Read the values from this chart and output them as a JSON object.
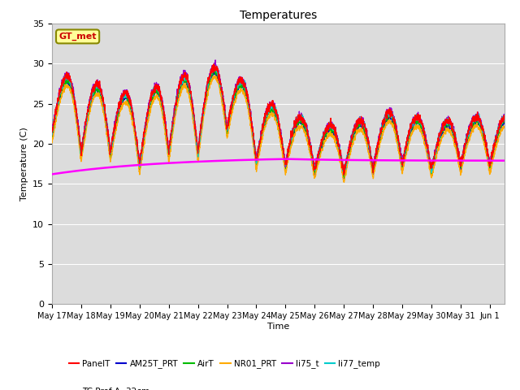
{
  "title": "Temperatures",
  "ylabel": "Temperature (C)",
  "xlabel": "Time",
  "ylim": [
    0,
    35
  ],
  "yticks": [
    0,
    5,
    10,
    15,
    20,
    25,
    30,
    35
  ],
  "xtick_labels": [
    "May 17",
    "May 18",
    "May 19",
    "May 20",
    "May 21",
    "May 22",
    "May 23",
    "May 24",
    "May 25",
    "May 26",
    "May 27",
    "May 28",
    "May 29",
    "May 30",
    "May 31",
    "Jun 1"
  ],
  "annotation_text": "GT_met",
  "annotation_color": "#cc0000",
  "annotation_bg": "#ffff99",
  "annotation_border": "#888800",
  "series_colors": {
    "PanelT": "#ff0000",
    "AM25T_PRT": "#0000cc",
    "AirT": "#00bb00",
    "NR01_PRT": "#ffaa00",
    "li75_t": "#9900cc",
    "li77_temp": "#00cccc",
    "TC_Prof": "#ff00ff"
  },
  "plot_bg": "#dcdcdc",
  "fig_bg": "#ffffff",
  "grid_color": "#ffffff"
}
